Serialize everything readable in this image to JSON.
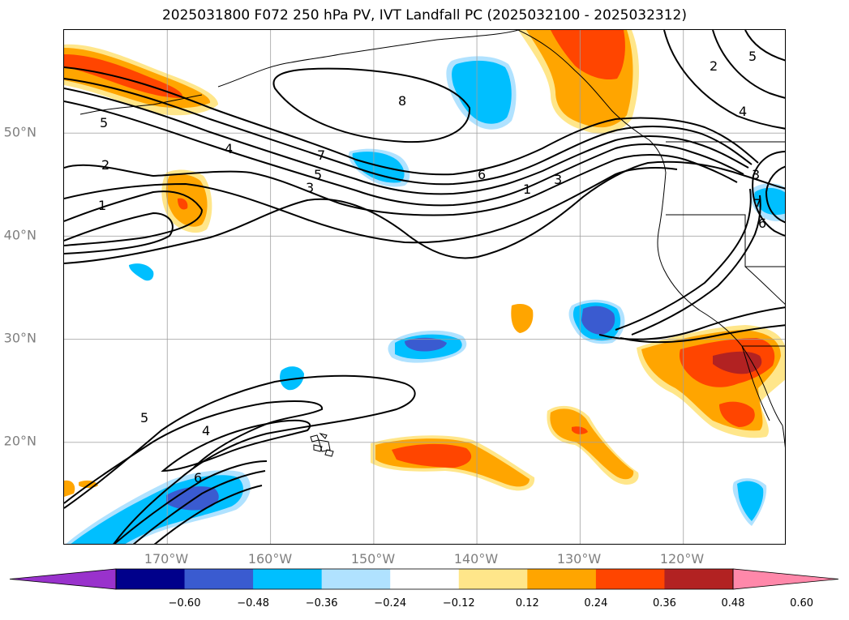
{
  "title": "2025031800 F072 250 hPa PV, IVT Landfall PC (2025032100 - 2025032312)",
  "map": {
    "projection": "PlateCarree",
    "lon_range": [
      -180,
      -110
    ],
    "lat_range": [
      10,
      60
    ],
    "lat_labels": [
      {
        "label": "50°N",
        "lat": 50
      },
      {
        "label": "40°N",
        "lat": 40
      },
      {
        "label": "30°N",
        "lat": 30
      },
      {
        "label": "20°N",
        "lat": 20
      }
    ],
    "lon_labels": [
      {
        "label": "170°W",
        "lon": -170
      },
      {
        "label": "160°W",
        "lon": -160
      },
      {
        "label": "150°W",
        "lon": -150
      },
      {
        "label": "140°W",
        "lon": -140
      },
      {
        "label": "130°W",
        "lon": -130
      },
      {
        "label": "120°W",
        "lon": -120
      }
    ],
    "gridlines": true,
    "coastlines": true,
    "contour_color": "#000000",
    "contour_labels": [
      "8",
      "7",
      "6",
      "5",
      "4",
      "3",
      "2",
      "1",
      "4",
      "5",
      "6",
      "5",
      "3",
      "1",
      "2",
      "4",
      "5",
      "3",
      "7",
      "6",
      "4",
      "1",
      "3",
      "2"
    ]
  },
  "colorbar": {
    "colors": [
      "#9932cc",
      "#00008b",
      "#3a5bd0",
      "#00bfff",
      "#b0e2ff",
      "#ffffff",
      "#ffe68a",
      "#ffa500",
      "#ff4500",
      "#b22222",
      "#ff88aa"
    ],
    "tick_labels": [
      "−0.60",
      "−0.48",
      "−0.36",
      "−0.24",
      "−0.12",
      "0.12",
      "0.24",
      "0.36",
      "0.48",
      "0.60"
    ],
    "ticks": [
      -0.6,
      -0.48,
      -0.36,
      -0.24,
      -0.12,
      0.12,
      0.24,
      0.36,
      0.48,
      0.6
    ],
    "extend": "both"
  }
}
